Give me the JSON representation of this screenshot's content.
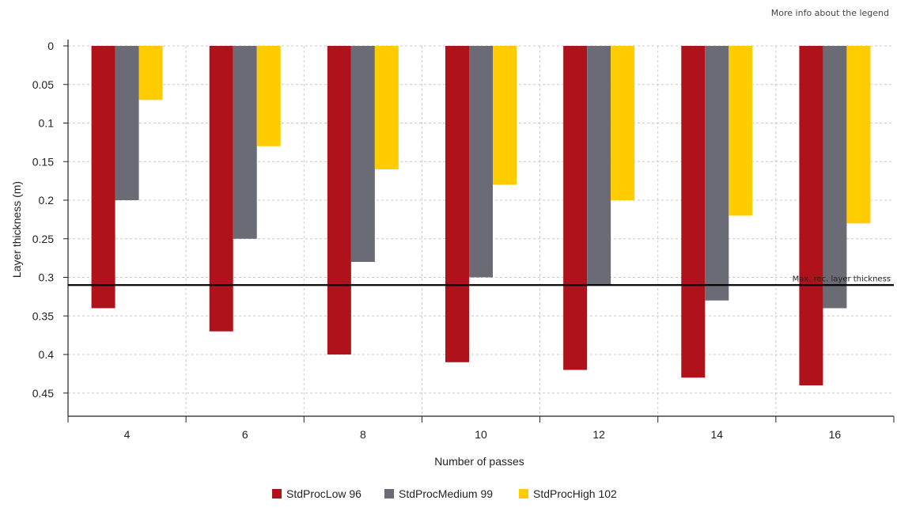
{
  "header": {
    "legend_info_link": "More info about the legend"
  },
  "chart_data": {
    "type": "bar",
    "orientation": "vertical-inverted",
    "categories": [
      "4",
      "6",
      "8",
      "10",
      "12",
      "14",
      "16"
    ],
    "series": [
      {
        "name": "StdProcLow 96",
        "color": "#b0121b",
        "values": [
          0.34,
          0.37,
          0.4,
          0.41,
          0.42,
          0.43,
          0.44
        ]
      },
      {
        "name": "StdProcMedium 99",
        "color": "#6b6b75",
        "values": [
          0.2,
          0.25,
          0.28,
          0.3,
          0.31,
          0.33,
          0.34
        ]
      },
      {
        "name": "StdProcHigh 102",
        "color": "#ffcc00",
        "values": [
          0.07,
          0.13,
          0.16,
          0.18,
          0.2,
          0.22,
          0.23
        ]
      }
    ],
    "xlabel": "Number of passes",
    "ylabel": "Layer thickness (m)",
    "ylim": [
      0,
      0.48
    ],
    "yticks": [
      "0",
      "0.05",
      "0.1",
      "0.15",
      "0.2",
      "0.25",
      "0.3",
      "0.35",
      "0.4",
      "0.45"
    ],
    "y_inverted": true,
    "grid": true,
    "legend_position": "bottom-center",
    "reference_line": {
      "value": 0.31,
      "label": "Max. rec. layer thickness",
      "color": "#000000"
    }
  }
}
